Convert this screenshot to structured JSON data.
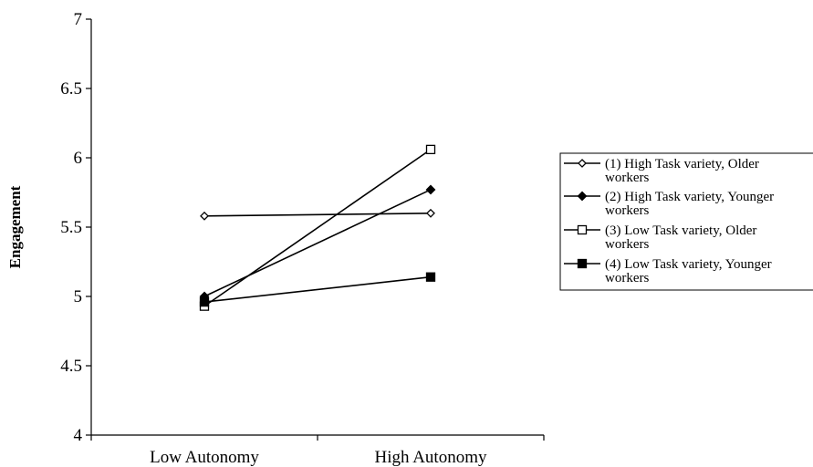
{
  "chart_data": {
    "type": "line",
    "categories": [
      "Low Autonomy",
      "High Autonomy"
    ],
    "ylabel": "Engagement",
    "xlabel": "",
    "ylim": [
      4,
      7
    ],
    "yticks": [
      "4",
      "4.5",
      "5",
      "5.5",
      "6",
      "6.5",
      "7"
    ],
    "grid": false,
    "legend_position": "right",
    "series": [
      {
        "name": "(1) High Task variety, Older workers",
        "values": [
          5.58,
          5.6
        ],
        "marker": "diamond-open"
      },
      {
        "name": "(2) High Task variety, Younger workers",
        "values": [
          5.0,
          5.77
        ],
        "marker": "diamond-filled"
      },
      {
        "name": "(3) Low Task variety, Older workers",
        "values": [
          4.93,
          6.06
        ],
        "marker": "square-open"
      },
      {
        "name": "(4) Low Task variety, Younger workers",
        "values": [
          4.96,
          5.14
        ],
        "marker": "square-filled"
      }
    ]
  }
}
